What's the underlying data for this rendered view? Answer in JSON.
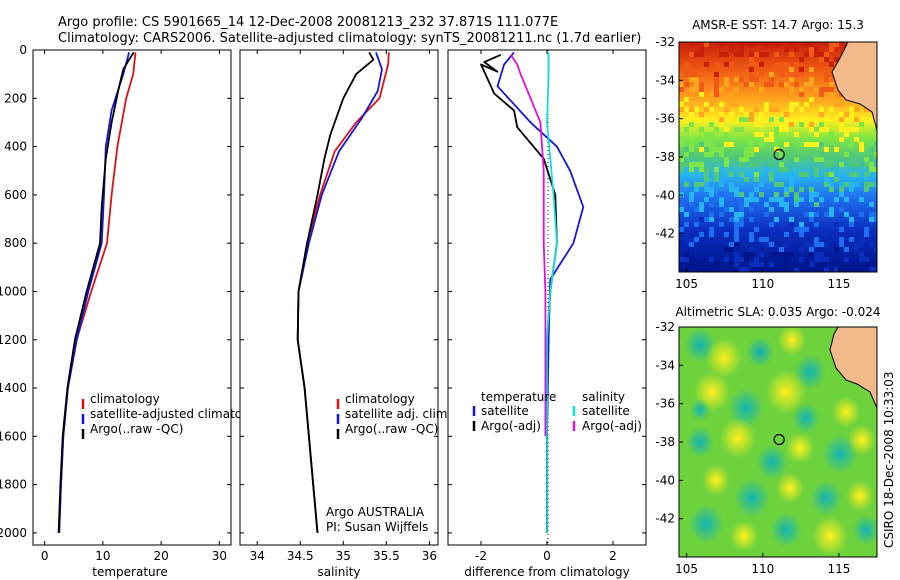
{
  "figure": {
    "title_line1": "Argo profile: CS 5901665_14 12-Dec-2008 20081213_232 37.871S 111.077E",
    "title_line2": "Climatology: CARS2006. Satellite-adjusted climatology: synTS_20081211.nc (1.7d earlier)",
    "credit": "CSIRO 18-Dec-2008 10:33:03"
  },
  "colors": {
    "climatology": "#dd1111",
    "satellite": "#1515d8",
    "argo": "#000000",
    "sat_salinity": "#11dddd",
    "argo_salinity": "#dd11dd",
    "land": "#f2b98a"
  },
  "chart_data": [
    {
      "type": "line",
      "xlabel": "temperature",
      "xlim": [
        -2,
        32
      ],
      "ylim": [
        2050,
        0
      ],
      "y_reversed": true,
      "xticks": [
        "0",
        "10",
        "20",
        "30"
      ],
      "yticks": [
        "0",
        "200",
        "400",
        "600",
        "800",
        "1000",
        "1200",
        "1400",
        "1600",
        "1800",
        "2000"
      ],
      "legend": [
        "climatology",
        "satellite-adjusted climatology",
        "Argo(..raw -QC)"
      ],
      "series": [
        {
          "name": "climatology",
          "color": "#dd1111",
          "points": [
            [
              15.6,
              10
            ],
            [
              15.2,
              100
            ],
            [
              14.0,
              200
            ],
            [
              12.5,
              400
            ],
            [
              11.5,
              600
            ],
            [
              10.7,
              800
            ],
            [
              8.0,
              1000
            ],
            [
              5.5,
              1200
            ],
            [
              4.0,
              1400
            ],
            [
              3.2,
              1600
            ],
            [
              2.8,
              1800
            ],
            [
              2.5,
              2000
            ]
          ]
        },
        {
          "name": "satellite-adjusted climatology",
          "color": "#1515d8",
          "points": [
            [
              14.5,
              10
            ],
            [
              13.5,
              100
            ],
            [
              11.5,
              250
            ],
            [
              10.5,
              400
            ],
            [
              10.2,
              600
            ],
            [
              9.8,
              800
            ],
            [
              7.5,
              1000
            ],
            [
              5.5,
              1200
            ],
            [
              4.0,
              1400
            ],
            [
              3.2,
              1600
            ],
            [
              2.8,
              1800
            ],
            [
              2.5,
              2000
            ]
          ]
        },
        {
          "name": "Argo(..raw -QC)",
          "color": "#000000",
          "points": [
            [
              15.3,
              10
            ],
            [
              14.5,
              40
            ],
            [
              13.5,
              80
            ],
            [
              12.8,
              150
            ],
            [
              11.5,
              300
            ],
            [
              10.5,
              450
            ],
            [
              9.8,
              650
            ],
            [
              9.5,
              800
            ],
            [
              7.2,
              1000
            ],
            [
              5.2,
              1200
            ],
            [
              3.9,
              1400
            ],
            [
              3.1,
              1600
            ],
            [
              2.7,
              1800
            ],
            [
              2.4,
              2000
            ]
          ]
        }
      ]
    },
    {
      "type": "line",
      "xlabel": "salinity",
      "xlim": [
        33.8,
        36.1
      ],
      "ylim": [
        2050,
        0
      ],
      "y_reversed": true,
      "xticks": [
        "34",
        "34.5",
        "35",
        "35.5",
        "36"
      ],
      "legend": [
        "climatology",
        "satellite adj. clim.",
        "Argo(..raw -QC)"
      ],
      "annotation_line1": "Argo AUSTRALIA",
      "annotation_line2": "PI: Susan Wijffels",
      "series": [
        {
          "name": "climatology",
          "color": "#dd1111",
          "points": [
            [
              35.53,
              10
            ],
            [
              35.52,
              60
            ],
            [
              35.42,
              200
            ],
            [
              35.15,
              300
            ],
            [
              34.9,
              420
            ],
            [
              34.73,
              600
            ],
            [
              34.58,
              800
            ],
            [
              34.48,
              1000
            ],
            [
              34.47,
              1200
            ],
            [
              34.55,
              1400
            ],
            [
              34.6,
              1600
            ],
            [
              34.65,
              1800
            ],
            [
              34.7,
              2000
            ]
          ]
        },
        {
          "name": "satellite adj. clim.",
          "color": "#1515d8",
          "points": [
            [
              35.38,
              10
            ],
            [
              35.45,
              80
            ],
            [
              35.4,
              170
            ],
            [
              35.22,
              280
            ],
            [
              34.95,
              420
            ],
            [
              34.75,
              600
            ],
            [
              34.6,
              800
            ],
            [
              34.48,
              1000
            ],
            [
              34.47,
              1200
            ],
            [
              34.55,
              1400
            ],
            [
              34.6,
              1600
            ],
            [
              34.65,
              1800
            ],
            [
              34.7,
              2000
            ]
          ]
        },
        {
          "name": "Argo(..raw -QC)",
          "color": "#000000",
          "points": [
            [
              35.3,
              10
            ],
            [
              35.35,
              40
            ],
            [
              35.15,
              100
            ],
            [
              35.0,
              200
            ],
            [
              34.85,
              350
            ],
            [
              34.78,
              450
            ],
            [
              34.7,
              600
            ],
            [
              34.58,
              800
            ],
            [
              34.48,
              1000
            ],
            [
              34.47,
              1200
            ],
            [
              34.55,
              1400
            ],
            [
              34.6,
              1600
            ],
            [
              34.65,
              1800
            ],
            [
              34.7,
              2000
            ]
          ]
        }
      ]
    },
    {
      "type": "line",
      "xlabel": "difference from climatology",
      "xlim": [
        -3,
        3
      ],
      "ylim": [
        2050,
        0
      ],
      "y_reversed": true,
      "xticks": [
        "-2",
        "0",
        "2"
      ],
      "legend_temperature_title": "temperature",
      "legend_salinity_title": "salinity",
      "legend": [
        "satellite",
        "Argo(-adj)",
        "satellite",
        "Argo(-adj)"
      ],
      "series": [
        {
          "name": "temperature satellite",
          "color": "#1515d8",
          "points": [
            [
              -1.0,
              10
            ],
            [
              -1.3,
              60
            ],
            [
              -1.5,
              150
            ],
            [
              -0.5,
              300
            ],
            [
              0.3,
              400
            ],
            [
              0.7,
              500
            ],
            [
              1.1,
              650
            ],
            [
              0.8,
              800
            ],
            [
              0.1,
              950
            ],
            [
              0.05,
              1200
            ],
            [
              0.0,
              1600
            ],
            [
              0.0,
              2000
            ]
          ]
        },
        {
          "name": "temperature Argo(-adj)",
          "color": "#000000",
          "points": [
            [
              -1.4,
              20
            ],
            [
              -1.9,
              50
            ],
            [
              -1.5,
              90
            ],
            [
              -2.0,
              60
            ],
            [
              -1.6,
              180
            ],
            [
              -1.0,
              250
            ],
            [
              -0.9,
              320
            ],
            [
              -0.1,
              450
            ],
            [
              0.25,
              600
            ],
            [
              0.3,
              800
            ],
            [
              0.1,
              1000
            ],
            [
              0.0,
              1200
            ],
            [
              0.0,
              1600
            ],
            [
              0.0,
              2000
            ]
          ]
        },
        {
          "name": "salinity satellite",
          "color": "#11dddd",
          "points": [
            [
              0.05,
              10
            ],
            [
              0.05,
              100
            ],
            [
              0.0,
              300
            ],
            [
              0.2,
              600
            ],
            [
              0.3,
              800
            ],
            [
              0.1,
              1000
            ],
            [
              0.0,
              1200
            ],
            [
              0.0,
              1600
            ],
            [
              0.0,
              2000
            ]
          ]
        },
        {
          "name": "salinity Argo(-adj)",
          "color": "#dd11dd",
          "points": [
            [
              -1.1,
              20
            ],
            [
              -0.9,
              60
            ],
            [
              -0.8,
              100
            ],
            [
              -0.2,
              300
            ],
            [
              -0.1,
              500
            ],
            [
              -0.1,
              800
            ],
            [
              -0.05,
              1000
            ],
            [
              -0.05,
              1400
            ],
            [
              -0.05,
              1600
            ]
          ]
        }
      ]
    },
    {
      "type": "heatmap",
      "title": "AMSR-E SST: 14.7  Argo: 15.3",
      "xticks": [
        "105",
        "110",
        "115"
      ],
      "yticks": [
        "-32",
        "-34",
        "-36",
        "-38",
        "-40",
        "-42"
      ],
      "xlim": [
        104.5,
        117.5
      ],
      "ylim": [
        -44,
        -32
      ],
      "marker": {
        "lon": 111.077,
        "lat": -37.871
      }
    },
    {
      "type": "heatmap",
      "title": "Altimetric SLA: 0.035  Argo: -0.024",
      "xticks": [
        "105",
        "110",
        "115"
      ],
      "yticks": [
        "-32",
        "-34",
        "-36",
        "-38",
        "-40",
        "-42"
      ],
      "xlim": [
        104.5,
        117.5
      ],
      "ylim": [
        -44,
        -32
      ],
      "marker": {
        "lon": 111.077,
        "lat": -37.871
      }
    }
  ]
}
